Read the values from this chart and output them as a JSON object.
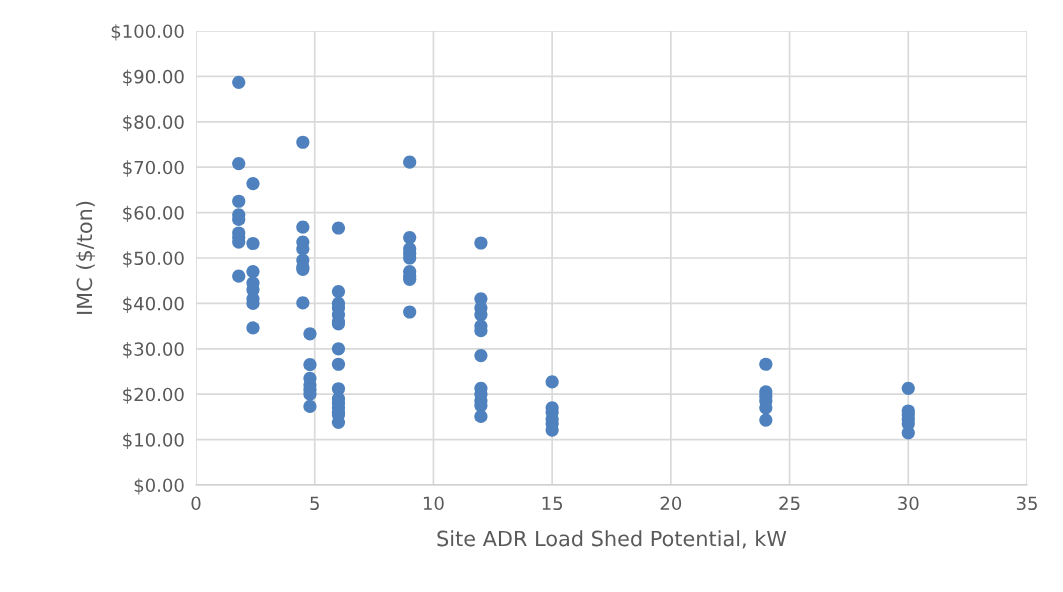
{
  "chart_data": {
    "type": "scatter",
    "xlabel": "Site ADR Load Shed Potential, kW",
    "ylabel": "IMC ($/ton)",
    "series": [
      {
        "color": "#4e81bd",
        "x": [
          1.8,
          1.8,
          1.8,
          1.8,
          1.8,
          1.8,
          1.8,
          1.8,
          1.8,
          2.4,
          2.4,
          2.4,
          2.4,
          2.4,
          2.4,
          2.4,
          2.4,
          4.5,
          4.5,
          4.5,
          4.5,
          4.5,
          4.5,
          4.5,
          4.5,
          4.8,
          4.8,
          4.8,
          4.8,
          4.8,
          4.8,
          4.8,
          6,
          6,
          6,
          6,
          6,
          6,
          6,
          6,
          6,
          6,
          6,
          6,
          6,
          6,
          6,
          6,
          9,
          9,
          9,
          9,
          9,
          9,
          9,
          9,
          9,
          12,
          12,
          12,
          12,
          12,
          12,
          12,
          12,
          12,
          12,
          12,
          12,
          15,
          15,
          15,
          15,
          15,
          15,
          24,
          24,
          24,
          24,
          24,
          24,
          30,
          30,
          30,
          30,
          30,
          30
        ],
        "values": [
          88.7,
          70.8,
          62.5,
          59.5,
          58.5,
          55.5,
          54.5,
          53.5,
          46.0,
          66.4,
          53.2,
          47.0,
          44.5,
          43.0,
          41.0,
          40.0,
          34.6,
          75.5,
          56.8,
          53.5,
          52.0,
          49.5,
          48.0,
          47.5,
          40.1,
          33.3,
          26.5,
          23.5,
          22.0,
          21.0,
          20.0,
          17.3,
          56.6,
          42.6,
          40.0,
          39.0,
          37.5,
          36.0,
          35.5,
          30.0,
          26.6,
          21.2,
          19.0,
          18.0,
          17.0,
          16.0,
          15.5,
          13.8,
          71.1,
          54.5,
          52.0,
          51.0,
          50.0,
          47.0,
          46.0,
          45.3,
          38.1,
          53.3,
          41.0,
          39.0,
          37.5,
          35.0,
          34.0,
          28.5,
          21.3,
          20.0,
          18.5,
          17.5,
          15.1,
          22.7,
          17.0,
          16.0,
          14.5,
          13.5,
          12.1,
          26.6,
          20.5,
          19.5,
          18.5,
          17.0,
          14.3,
          21.3,
          16.3,
          15.5,
          14.5,
          13.5,
          11.5
        ]
      }
    ],
    "xlim": [
      0,
      35
    ],
    "xticks": [
      0,
      5,
      10,
      15,
      20,
      25,
      30,
      35
    ],
    "ylim": [
      0,
      100
    ],
    "yticks": [
      {
        "value": 0,
        "label": "$0.00"
      },
      {
        "value": 10,
        "label": "$10.00"
      },
      {
        "value": 20,
        "label": "$20.00"
      },
      {
        "value": 30,
        "label": "$30.00"
      },
      {
        "value": 40,
        "label": "$40.00"
      },
      {
        "value": 50,
        "label": "$50.00"
      },
      {
        "value": 60,
        "label": "$60.00"
      },
      {
        "value": 70,
        "label": "$70.00"
      },
      {
        "value": 80,
        "label": "$80.00"
      },
      {
        "value": 90,
        "label": "$90.00"
      },
      {
        "value": 100,
        "label": "$100.00"
      }
    ],
    "grid": true,
    "marker": "circle"
  }
}
